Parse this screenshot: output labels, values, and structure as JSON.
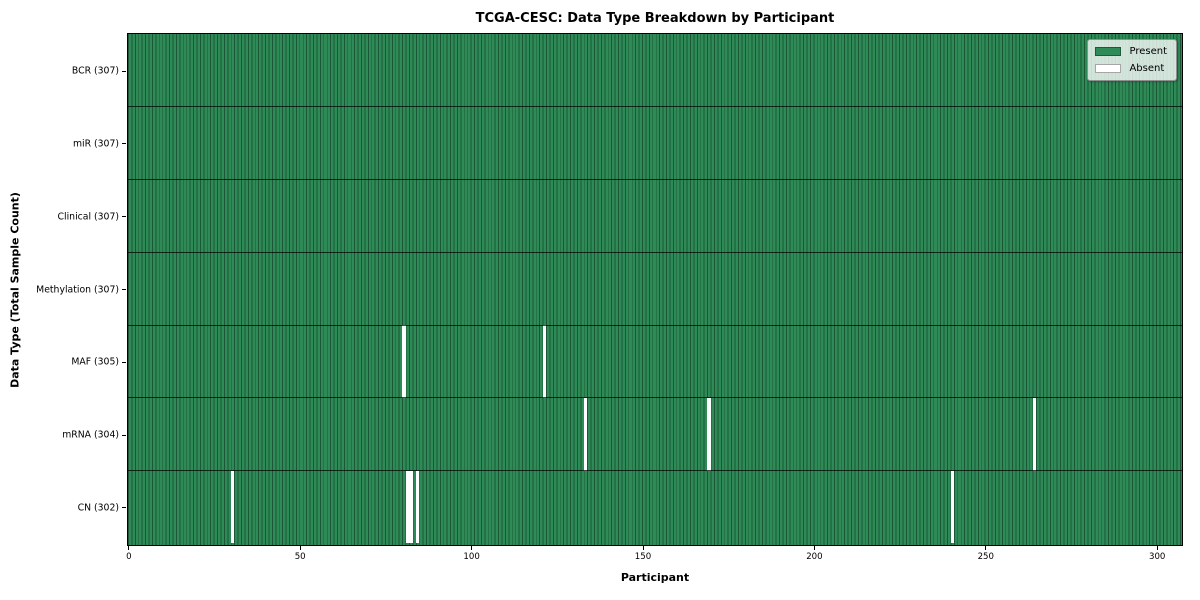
{
  "chart_data": {
    "type": "heatmap",
    "title": "TCGA-CESC: Data Type Breakdown by Participant",
    "xlabel": "Participant",
    "ylabel": "Data Type (Total Sample Count)",
    "x_ticks": [
      0,
      50,
      100,
      150,
      200,
      250,
      300
    ],
    "xlim": [
      0,
      307
    ],
    "n_participants": 307,
    "grid": "off",
    "rows": [
      {
        "label": "BCR",
        "total": 307,
        "absent_participants": []
      },
      {
        "label": "miR",
        "total": 307,
        "absent_participants": []
      },
      {
        "label": "Clinical",
        "total": 307,
        "absent_participants": []
      },
      {
        "label": "Methylation",
        "total": 307,
        "absent_participants": []
      },
      {
        "label": "MAF",
        "total": 305,
        "absent_participants": [
          80,
          121
        ]
      },
      {
        "label": "mRNA",
        "total": 304,
        "absent_participants": [
          133,
          169,
          264
        ]
      },
      {
        "label": "CN",
        "total": 302,
        "absent_participants": [
          30,
          81,
          82,
          84,
          240
        ]
      }
    ],
    "legend": {
      "position": "upper right",
      "items": [
        {
          "label": "Present",
          "color": "#2e8b57"
        },
        {
          "label": "Absent",
          "color": "#ffffff"
        }
      ]
    },
    "colors": {
      "present": "#2e8b57",
      "absent": "#ffffff",
      "column_edge": "#1d5435",
      "row_divider": "#1a1a1a",
      "plot_border": "#000000"
    },
    "y_tick_label_format": "{label} ({total})"
  }
}
